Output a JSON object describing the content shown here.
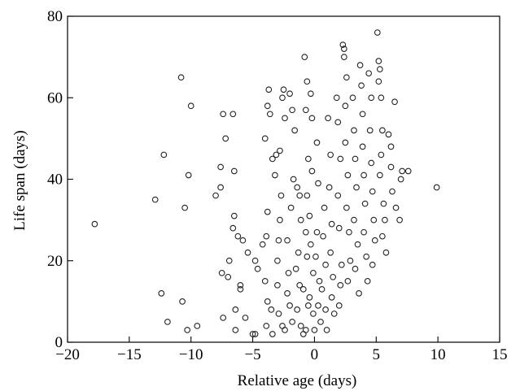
{
  "chart_data": {
    "type": "scatter",
    "title": "",
    "xlabel": "Relative age (days)",
    "ylabel": "Life span (days)",
    "xlim": [
      -20,
      15
    ],
    "ylim": [
      0,
      80
    ],
    "xticks": [
      -20,
      -15,
      -10,
      -5,
      0,
      5,
      10,
      15
    ],
    "xtick_labels": [
      "−20",
      "−15",
      "−10",
      "−5",
      "0",
      "5",
      "10",
      "15"
    ],
    "yticks": [
      0,
      20,
      40,
      60,
      80
    ],
    "ytick_labels": [
      "0",
      "20",
      "40",
      "60",
      "80"
    ],
    "grid": false,
    "legend": "none",
    "marker": "open-circle",
    "series": [
      {
        "points": [
          [
            -17.8,
            29
          ],
          [
            -12.9,
            35
          ],
          [
            -12.2,
            46
          ],
          [
            -12.4,
            12
          ],
          [
            -11.9,
            5
          ],
          [
            -10.8,
            65
          ],
          [
            -10.5,
            33
          ],
          [
            -10.2,
            41
          ],
          [
            -10.0,
            58
          ],
          [
            -10.3,
            3
          ],
          [
            -9.5,
            4
          ],
          [
            -10.7,
            10
          ],
          [
            -8.0,
            36
          ],
          [
            -7.6,
            43
          ],
          [
            -7.4,
            56
          ],
          [
            -7.6,
            38
          ],
          [
            -7.2,
            50
          ],
          [
            -7.5,
            17
          ],
          [
            -7.4,
            6
          ],
          [
            -7.0,
            16
          ],
          [
            -6.6,
            56
          ],
          [
            -6.5,
            42
          ],
          [
            -6.5,
            31
          ],
          [
            -6.6,
            28
          ],
          [
            -6.4,
            8
          ],
          [
            -6.4,
            3
          ],
          [
            -6.0,
            14
          ],
          [
            -6.9,
            20
          ],
          [
            -6.2,
            26
          ],
          [
            -5.8,
            25
          ],
          [
            -5.4,
            22
          ],
          [
            -5.6,
            6
          ],
          [
            -6.0,
            13
          ],
          [
            -4.8,
            20
          ],
          [
            -5.0,
            2
          ],
          [
            -4.8,
            2
          ],
          [
            -4.6,
            18
          ],
          [
            -4.2,
            24
          ],
          [
            -4.0,
            50
          ],
          [
            -3.8,
            58
          ],
          [
            -3.7,
            62
          ],
          [
            -3.6,
            56
          ],
          [
            -3.4,
            45
          ],
          [
            -3.8,
            32
          ],
          [
            -3.9,
            26
          ],
          [
            -4.0,
            15
          ],
          [
            -3.8,
            10
          ],
          [
            -3.9,
            4
          ],
          [
            -3.5,
            8
          ],
          [
            -3.4,
            2
          ],
          [
            -3.2,
            41
          ],
          [
            -3.1,
            46
          ],
          [
            -2.8,
            47
          ],
          [
            -2.6,
            60
          ],
          [
            -2.5,
            62
          ],
          [
            -2.4,
            55
          ],
          [
            -2.7,
            36
          ],
          [
            -2.8,
            30
          ],
          [
            -2.9,
            25
          ],
          [
            -3.0,
            20
          ],
          [
            -3.0,
            14
          ],
          [
            -2.9,
            7
          ],
          [
            -2.6,
            4
          ],
          [
            -2.4,
            3
          ],
          [
            -2.0,
            61
          ],
          [
            -1.8,
            57
          ],
          [
            -1.6,
            52
          ],
          [
            -1.7,
            40
          ],
          [
            -1.9,
            33
          ],
          [
            -2.2,
            25
          ],
          [
            -2.1,
            17
          ],
          [
            -2.2,
            12
          ],
          [
            -2.0,
            9
          ],
          [
            -1.8,
            5
          ],
          [
            -1.4,
            38
          ],
          [
            -1.2,
            36
          ],
          [
            -1.1,
            30
          ],
          [
            -1.3,
            22
          ],
          [
            -1.5,
            18
          ],
          [
            -1.2,
            14
          ],
          [
            -1.4,
            8
          ],
          [
            -1.1,
            4
          ],
          [
            -0.9,
            2
          ],
          [
            -0.8,
            70
          ],
          [
            -0.7,
            57
          ],
          [
            -0.6,
            64
          ],
          [
            -0.5,
            45
          ],
          [
            -0.6,
            36
          ],
          [
            -0.7,
            27
          ],
          [
            -0.6,
            21
          ],
          [
            -0.9,
            13
          ],
          [
            -0.5,
            9
          ],
          [
            -0.7,
            3
          ],
          [
            -0.3,
            61
          ],
          [
            -0.2,
            55
          ],
          [
            -0.2,
            42
          ],
          [
            -0.4,
            31
          ],
          [
            -0.3,
            24
          ],
          [
            -0.1,
            17
          ],
          [
            -0.4,
            11
          ],
          [
            -0.1,
            7
          ],
          [
            0.0,
            3
          ],
          [
            0.2,
            49
          ],
          [
            0.3,
            39
          ],
          [
            0.2,
            27
          ],
          [
            0.1,
            21
          ],
          [
            0.4,
            15
          ],
          [
            0.3,
            9
          ],
          [
            0.5,
            5
          ],
          [
            0.8,
            33
          ],
          [
            0.7,
            26
          ],
          [
            0.9,
            19
          ],
          [
            0.6,
            13
          ],
          [
            0.9,
            8
          ],
          [
            1.0,
            3
          ],
          [
            1.1,
            55
          ],
          [
            1.3,
            46
          ],
          [
            1.2,
            38
          ],
          [
            1.4,
            29
          ],
          [
            1.3,
            22
          ],
          [
            1.5,
            16
          ],
          [
            1.4,
            11
          ],
          [
            1.6,
            7
          ],
          [
            1.8,
            60
          ],
          [
            1.9,
            54
          ],
          [
            2.1,
            45
          ],
          [
            1.9,
            36
          ],
          [
            2.0,
            28
          ],
          [
            2.2,
            19
          ],
          [
            2.1,
            14
          ],
          [
            2.0,
            9
          ],
          [
            2.3,
            73
          ],
          [
            2.4,
            72
          ],
          [
            2.4,
            70
          ],
          [
            2.6,
            65
          ],
          [
            2.5,
            58
          ],
          [
            2.5,
            49
          ],
          [
            2.7,
            41
          ],
          [
            2.6,
            33
          ],
          [
            2.8,
            27
          ],
          [
            2.9,
            20
          ],
          [
            2.7,
            15
          ],
          [
            3.1,
            60
          ],
          [
            3.2,
            52
          ],
          [
            3.3,
            45
          ],
          [
            3.4,
            38
          ],
          [
            3.2,
            30
          ],
          [
            3.5,
            24
          ],
          [
            3.3,
            18
          ],
          [
            3.6,
            12
          ],
          [
            3.7,
            68
          ],
          [
            3.8,
            63
          ],
          [
            3.9,
            56
          ],
          [
            3.9,
            48
          ],
          [
            4.0,
            41
          ],
          [
            4.1,
            34
          ],
          [
            4.0,
            27
          ],
          [
            4.2,
            21
          ],
          [
            4.3,
            15
          ],
          [
            4.4,
            66
          ],
          [
            4.6,
            60
          ],
          [
            4.5,
            52
          ],
          [
            4.6,
            44
          ],
          [
            4.7,
            37
          ],
          [
            4.8,
            30
          ],
          [
            4.9,
            25
          ],
          [
            4.7,
            19
          ],
          [
            5.1,
            76
          ],
          [
            5.2,
            69
          ],
          [
            5.3,
            67
          ],
          [
            5.2,
            64
          ],
          [
            5.4,
            60
          ],
          [
            5.5,
            52
          ],
          [
            5.4,
            46
          ],
          [
            5.3,
            41
          ],
          [
            5.6,
            34
          ],
          [
            5.7,
            30
          ],
          [
            5.5,
            26
          ],
          [
            5.8,
            22
          ],
          [
            6.0,
            51
          ],
          [
            6.2,
            48
          ],
          [
            6.2,
            43
          ],
          [
            6.3,
            37
          ],
          [
            6.5,
            59
          ],
          [
            6.6,
            33
          ],
          [
            6.9,
            30
          ],
          [
            7.0,
            40
          ],
          [
            7.1,
            42
          ],
          [
            7.6,
            42
          ],
          [
            9.9,
            38
          ]
        ]
      }
    ]
  }
}
